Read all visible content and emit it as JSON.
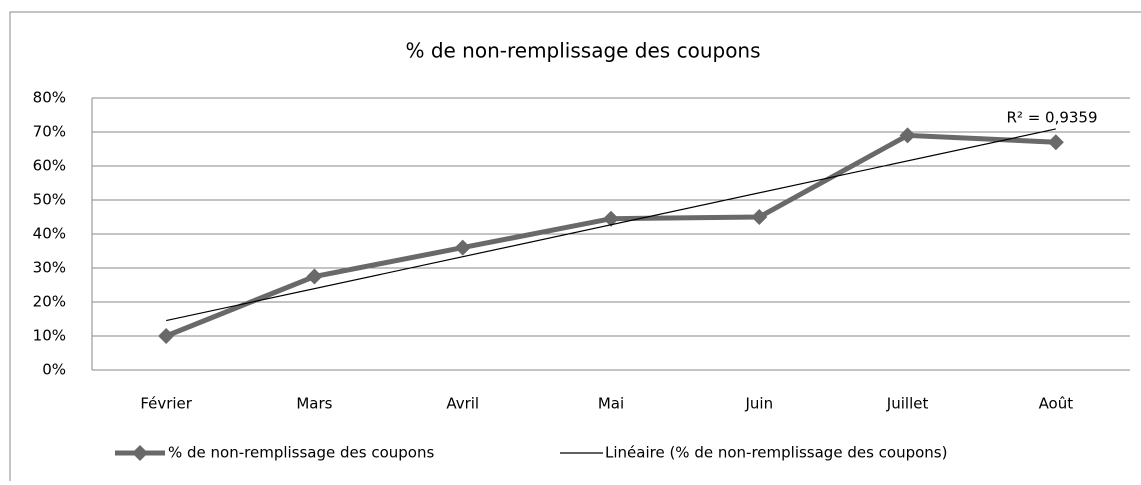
{
  "chart_data": {
    "type": "line",
    "title": "% de non-remplissage des coupons",
    "categories": [
      "Février",
      "Mars",
      "Avril",
      "Mai",
      "Juin",
      "Juillet",
      "Août"
    ],
    "series": [
      {
        "name": "% de non-remplissage des coupons",
        "color": "#696969",
        "values": [
          10,
          27.5,
          36,
          44.5,
          45,
          69,
          67
        ]
      }
    ],
    "trendline": {
      "name": "Linéaire (% de non-remplissage des coupons)",
      "color": "#000000",
      "annotation": "R² = 0,9359"
    },
    "ylim": [
      0,
      80
    ],
    "yticks": [
      {
        "value": 0,
        "label": "0%"
      },
      {
        "value": 10,
        "label": "10%"
      },
      {
        "value": 20,
        "label": "20%"
      },
      {
        "value": 30,
        "label": "30%"
      },
      {
        "value": 40,
        "label": "40%"
      },
      {
        "value": 50,
        "label": "50%"
      },
      {
        "value": 60,
        "label": "60%"
      },
      {
        "value": 70,
        "label": "70%"
      },
      {
        "value": 80,
        "label": "80%"
      }
    ],
    "grid": true,
    "legend": "bottom"
  }
}
